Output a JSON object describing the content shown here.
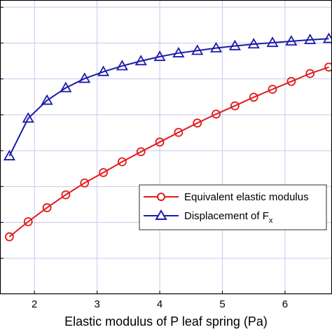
{
  "chart_data": {
    "type": "line",
    "title": "",
    "xlabel": "Elastic modulus of P leaf spring (Pa)",
    "ylabel": "",
    "xlim": [
      1.45,
      6.75
    ],
    "ylim": [
      0,
      8.2
    ],
    "xticks": [
      2,
      3,
      4,
      5,
      6
    ],
    "xtick_labels": [
      "2",
      "3",
      "4",
      "5",
      "6"
    ],
    "yticks": [
      1,
      2,
      3,
      4,
      5,
      6,
      7,
      8
    ],
    "grid": true,
    "legend_position": "middle-right",
    "series": [
      {
        "name": "Equivalent elastic modulus",
        "color": "#e31a1c",
        "marker": "circle",
        "x": [
          1.6,
          1.9,
          2.2,
          2.5,
          2.8,
          3.1,
          3.4,
          3.7,
          4.0,
          4.3,
          4.6,
          4.9,
          5.2,
          5.5,
          5.8,
          6.1,
          6.4,
          6.7
        ],
        "y": [
          1.6,
          2.02,
          2.41,
          2.77,
          3.1,
          3.39,
          3.69,
          3.97,
          4.24,
          4.51,
          4.77,
          5.02,
          5.25,
          5.49,
          5.71,
          5.93,
          6.15,
          6.33
        ]
      },
      {
        "name": "Displacement of F",
        "name_subscript": "x",
        "color": "#1c1ca8",
        "marker": "triangle",
        "x": [
          1.6,
          1.9,
          2.2,
          2.5,
          2.8,
          3.1,
          3.4,
          3.7,
          4.0,
          4.3,
          4.6,
          4.9,
          5.2,
          5.5,
          5.8,
          6.1,
          6.4,
          6.7
        ],
        "y": [
          3.85,
          4.9,
          5.4,
          5.75,
          6.01,
          6.2,
          6.36,
          6.5,
          6.62,
          6.72,
          6.79,
          6.86,
          6.92,
          6.97,
          7.01,
          7.05,
          7.09,
          7.12
        ]
      }
    ]
  }
}
